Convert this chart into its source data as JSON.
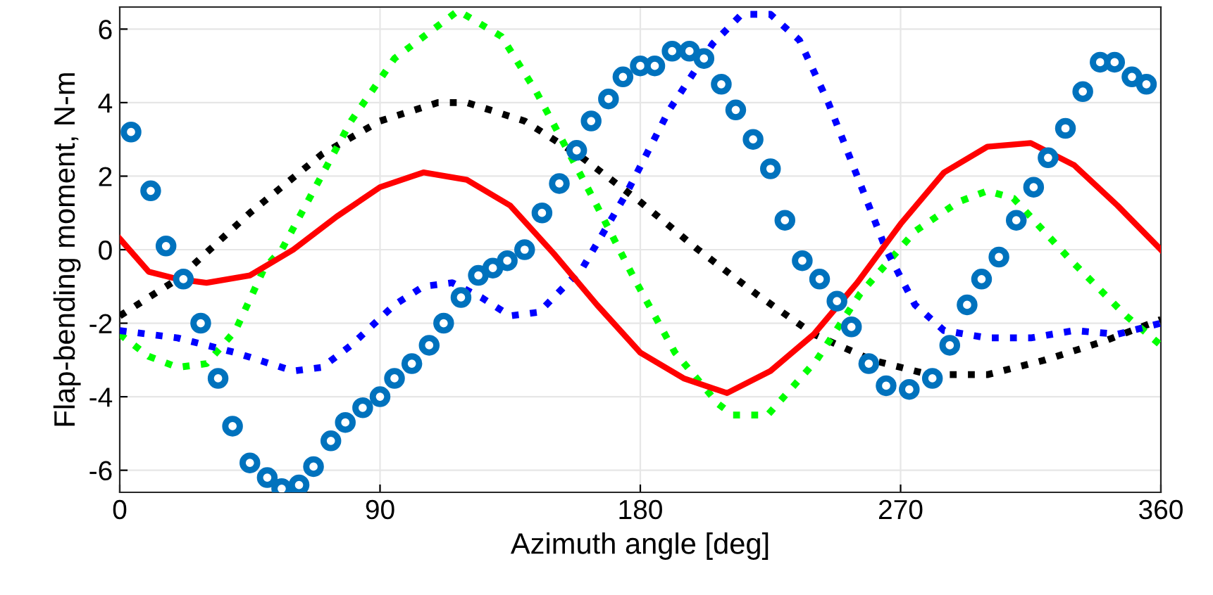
{
  "chart_data": {
    "type": "line",
    "xlabel": "Azimuth angle [deg]",
    "ylabel": "Flap-bending moment, N-m",
    "xlim": [
      0,
      360
    ],
    "xticks": [
      0,
      90,
      180,
      270,
      360
    ],
    "ylim": [
      -6.6,
      6.6
    ],
    "yticks": [
      -6,
      -4,
      -2,
      0,
      2,
      4,
      6
    ],
    "grid": true,
    "series": [
      {
        "color": "#000000",
        "line_style": "dotted",
        "x": [
          0,
          20,
          45,
          70,
          90,
          110,
          120,
          140,
          160,
          180,
          200,
          220,
          240,
          260,
          280,
          300,
          320,
          340,
          360
        ],
        "values": [
          -1.8,
          -0.8,
          1.0,
          2.6,
          3.5,
          4.0,
          4.0,
          3.5,
          2.5,
          1.3,
          0.0,
          -1.2,
          -2.3,
          -3.0,
          -3.4,
          -3.4,
          -3.0,
          -2.5,
          -1.9
        ]
      },
      {
        "color": "#00ff00",
        "line_style": "dotted",
        "x": [
          0,
          10,
          20,
          30,
          40,
          50,
          56,
          80,
          95,
          117,
          132,
          144,
          163,
          178,
          192,
          207,
          212,
          224,
          241,
          256,
          275,
          290,
          300,
          309,
          329,
          348,
          360
        ],
        "values": [
          -2.3,
          -2.9,
          -3.2,
          -3.1,
          -2.2,
          -0.5,
          0.0,
          3.5,
          5.2,
          6.5,
          5.8,
          4.3,
          1.5,
          -0.8,
          -2.8,
          -4.2,
          -4.5,
          -4.5,
          -3.0,
          -1.2,
          0.5,
          1.3,
          1.6,
          1.4,
          -0.3,
          -1.8,
          -2.6
        ]
      },
      {
        "color": "#0000ff",
        "line_style": "dotted",
        "x": [
          0,
          20,
          40,
          60,
          70,
          80,
          95,
          105,
          115,
          125,
          135,
          145,
          160,
          175,
          190,
          205,
          215,
          225,
          235,
          245,
          255,
          265,
          275,
          285,
          300,
          315,
          330,
          345,
          360
        ],
        "values": [
          -2.2,
          -2.4,
          -2.8,
          -3.3,
          -3.2,
          -2.6,
          -1.5,
          -1.0,
          -0.9,
          -1.3,
          -1.8,
          -1.7,
          -0.5,
          1.5,
          3.8,
          5.6,
          6.4,
          6.4,
          5.7,
          4.0,
          2.0,
          0.0,
          -1.5,
          -2.2,
          -2.4,
          -2.4,
          -2.2,
          -2.3,
          -2.0
        ]
      },
      {
        "color": "#ff0000",
        "line_style": "solid",
        "x": [
          0,
          10,
          20,
          30,
          45,
          60,
          75,
          90,
          105,
          120,
          135,
          150,
          165,
          180,
          195,
          210,
          225,
          240,
          255,
          270,
          285,
          300,
          315,
          330,
          345,
          360
        ],
        "values": [
          0.3,
          -0.6,
          -0.8,
          -0.9,
          -0.7,
          0.0,
          0.9,
          1.7,
          2.1,
          1.9,
          1.2,
          -0.1,
          -1.5,
          -2.8,
          -3.5,
          -3.9,
          -3.3,
          -2.3,
          -0.9,
          0.7,
          2.1,
          2.8,
          2.9,
          2.3,
          1.2,
          0.0
        ]
      },
      {
        "type": "scatter",
        "color": "#0072bd",
        "marker": "circle",
        "x": [
          3.9,
          10.7,
          16,
          22,
          28,
          34,
          39,
          45,
          51,
          56,
          62,
          67,
          73,
          78,
          84,
          90,
          95,
          101,
          107,
          112,
          118,
          124,
          129,
          134,
          140,
          146,
          152,
          158,
          163,
          169,
          174,
          180,
          185,
          191,
          197,
          202,
          208,
          213,
          219,
          225,
          230,
          236,
          242,
          248,
          253,
          259,
          265,
          273,
          281,
          287,
          293,
          298,
          304,
          310,
          316,
          321,
          327,
          333,
          339,
          344,
          350,
          355
        ],
        "values": [
          3.2,
          1.6,
          0.1,
          -0.8,
          -2.0,
          -3.5,
          -4.8,
          -5.8,
          -6.2,
          -6.5,
          -6.4,
          -5.9,
          -5.2,
          -4.7,
          -4.3,
          -4.0,
          -3.5,
          -3.1,
          -2.6,
          -2.0,
          -1.3,
          -0.7,
          -0.5,
          -0.3,
          0.0,
          1.0,
          1.8,
          2.7,
          3.5,
          4.1,
          4.7,
          5.0,
          5.0,
          5.4,
          5.4,
          5.2,
          4.5,
          3.8,
          3.0,
          2.2,
          0.8,
          -0.3,
          -0.8,
          -1.4,
          -2.1,
          -3.1,
          -3.7,
          -3.8,
          -3.5,
          -2.6,
          -1.5,
          -0.8,
          -0.2,
          0.8,
          1.7,
          2.5,
          3.3,
          4.3,
          5.1,
          5.1,
          4.7,
          4.5
        ]
      }
    ]
  }
}
